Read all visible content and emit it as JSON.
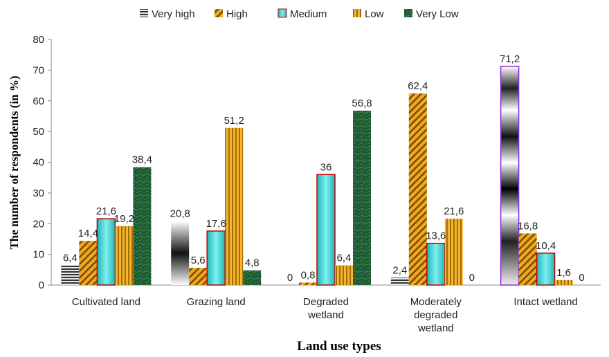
{
  "chart_data": {
    "type": "bar",
    "xlabel": "Land use types",
    "ylabel": "The number of respondents (in %)",
    "ylim": [
      0,
      80
    ],
    "yticks": [
      0,
      10,
      20,
      30,
      40,
      50,
      60,
      70,
      80
    ],
    "grid": false,
    "legend_position": "top",
    "categories": [
      [
        "Cultivated land"
      ],
      [
        "Grazing land"
      ],
      [
        "Degraded",
        "wetland"
      ],
      [
        "Moderately",
        "degraded",
        "wetland"
      ],
      [
        "Intact wetland"
      ]
    ],
    "series": [
      {
        "name": "Very high",
        "values": [
          6.4,
          20.8,
          0,
          2.4,
          71.2
        ],
        "labels": [
          "6,4",
          "20,8",
          "0",
          "2,4",
          "71,2"
        ],
        "color": "#444444",
        "pattern": "very-high"
      },
      {
        "name": "High",
        "values": [
          14.4,
          5.6,
          0.8,
          62.4,
          16.8
        ],
        "labels": [
          "14,4",
          "5,6",
          "0,8",
          "62,4",
          "16,8"
        ],
        "color": "#C8860A",
        "pattern": "high"
      },
      {
        "name": "Medium",
        "values": [
          21.6,
          17.6,
          36,
          13.6,
          10.4
        ],
        "labels": [
          "21,6",
          "17,6",
          "36",
          "13,6",
          "10,4"
        ],
        "color": "#33CCCC",
        "pattern": "medium"
      },
      {
        "name": "Low",
        "values": [
          19.2,
          51.2,
          6.4,
          21.6,
          1.6
        ],
        "labels": [
          "19,2",
          "51,2",
          "6,4",
          "21,6",
          "1,6"
        ],
        "color": "#E0A010",
        "pattern": "low"
      },
      {
        "name": "Very Low",
        "values": [
          38.4,
          4.8,
          56.8,
          0,
          0
        ],
        "labels": [
          "38,4",
          "4,8",
          "56,8",
          "0",
          "0"
        ],
        "color": "#1E5A32",
        "pattern": "very-low"
      }
    ]
  }
}
